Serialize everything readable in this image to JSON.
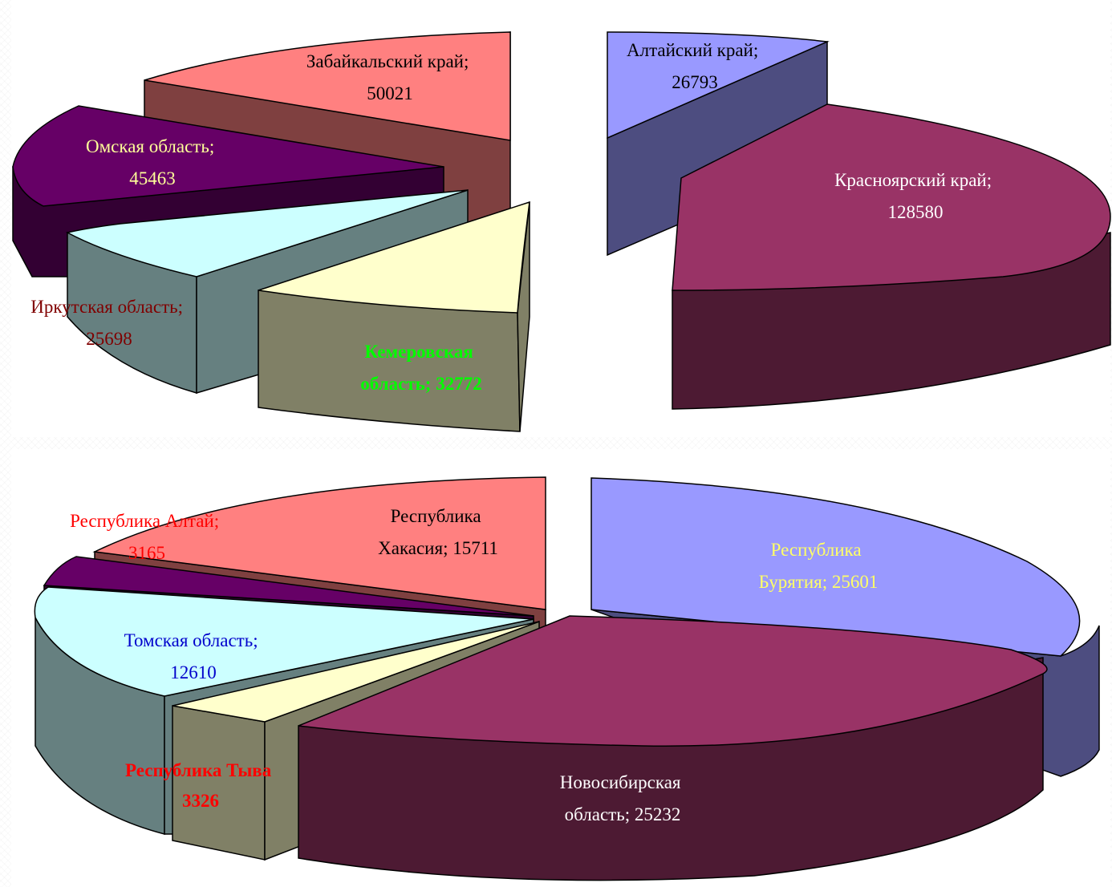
{
  "chart_data": [
    {
      "type": "pie",
      "style": "3d-exploded",
      "title": "",
      "slices": [
        {
          "label": "Забайкальский край",
          "value": 50021,
          "text_lines": [
            "Забайкальский край;",
            "50021"
          ],
          "colors": {
            "top": "#ff8080",
            "side": "#7f4040",
            "label": "#000000"
          }
        },
        {
          "label": "Омская область",
          "value": 45463,
          "text_lines": [
            "Омская область;",
            "45463"
          ],
          "colors": {
            "top": "#660066",
            "side": "#330033",
            "label": "#ffff99"
          }
        },
        {
          "label": "Иркутская область",
          "value": 25698,
          "text_lines": [
            "Иркутская область;",
            "25698"
          ],
          "colors": {
            "top": "#ccffff",
            "side": "#668080",
            "label": "#800000"
          }
        },
        {
          "label": "Кемеровская область",
          "value": 32772,
          "text_lines": [
            "Кемеровская",
            "область; 32772"
          ],
          "colors": {
            "top": "#ffffcc",
            "side": "#808066",
            "label": "#00ff00"
          }
        },
        {
          "label": "Алтайский край",
          "value": 26793,
          "text_lines": [
            "Алтайский край;",
            "26793"
          ],
          "colors": {
            "top": "#9999ff",
            "side": "#4d4d80",
            "label": "#000000"
          }
        },
        {
          "label": "Красноярский край",
          "value": 128580,
          "text_lines": [
            "Красноярский край;",
            "128580"
          ],
          "colors": {
            "top": "#993366",
            "side": "#4d1a33",
            "label": "#ffffff"
          }
        }
      ]
    },
    {
      "type": "pie",
      "style": "3d-exploded",
      "title": "",
      "slices": [
        {
          "label": "Республика Хакасия",
          "value": 15711,
          "text_lines": [
            "Республика",
            "Хакасия; 15711"
          ],
          "colors": {
            "top": "#ff8080",
            "side": "#7f4040",
            "label": "#000000"
          }
        },
        {
          "label": "Республика Алтай",
          "value": 3165,
          "text_lines": [
            "Республика Алтай;",
            "3165"
          ],
          "colors": {
            "top": "#660066",
            "side": "#330033",
            "label": "#ff0000"
          }
        },
        {
          "label": "Томская область",
          "value": 12610,
          "text_lines": [
            "Томская область;",
            "12610"
          ],
          "colors": {
            "top": "#ccffff",
            "side": "#668080",
            "label": "#0000cc"
          }
        },
        {
          "label": "Республика Тыва",
          "value": 3326,
          "text_lines": [
            "Республика Тыва",
            "3326"
          ],
          "colors": {
            "top": "#ffffcc",
            "side": "#808066",
            "label": "#ff0000"
          }
        },
        {
          "label": "Республика Бурятия",
          "value": 25601,
          "text_lines": [
            "Республика",
            "Бурятия; 25601"
          ],
          "colors": {
            "top": "#9999ff",
            "side": "#4d4d80",
            "label": "#ffff66"
          }
        },
        {
          "label": "Новосибирская область",
          "value": 25232,
          "text_lines": [
            "Новосибирская",
            "область; 25232"
          ],
          "colors": {
            "top": "#993366",
            "side": "#4d1a33",
            "label": "#ffffff"
          }
        }
      ]
    }
  ]
}
